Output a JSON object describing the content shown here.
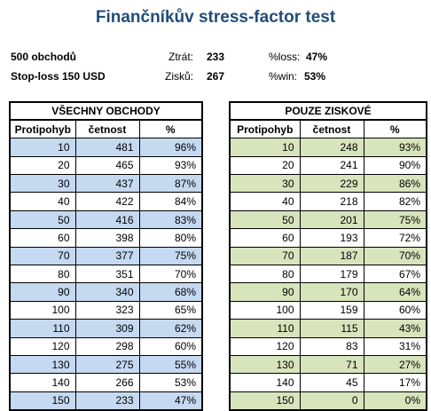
{
  "title": "Finančníkův stress-factor test",
  "info": {
    "trades": "500 obchodů",
    "stoploss": "Stop-loss 150 USD",
    "losses_label": "Ztrát:",
    "losses_value": "233",
    "wins_label": "Zisků:",
    "wins_value": "267",
    "pct_loss_label": "%loss:",
    "pct_loss_value": "47%",
    "pct_win_label": "%win:",
    "pct_win_value": "53%"
  },
  "tables": [
    {
      "caption": "VŠECHNY OBCHODY",
      "headers": [
        "Protipohyb",
        "četnost",
        "%"
      ],
      "rows": [
        [
          "10",
          "481",
          "96%"
        ],
        [
          "20",
          "465",
          "93%"
        ],
        [
          "30",
          "437",
          "87%"
        ],
        [
          "40",
          "422",
          "84%"
        ],
        [
          "50",
          "416",
          "83%"
        ],
        [
          "60",
          "398",
          "80%"
        ],
        [
          "70",
          "377",
          "75%"
        ],
        [
          "80",
          "351",
          "70%"
        ],
        [
          "90",
          "340",
          "68%"
        ],
        [
          "100",
          "323",
          "65%"
        ],
        [
          "110",
          "309",
          "62%"
        ],
        [
          "120",
          "298",
          "60%"
        ],
        [
          "130",
          "275",
          "55%"
        ],
        [
          "140",
          "266",
          "53%"
        ],
        [
          "150",
          "233",
          "47%"
        ]
      ]
    },
    {
      "caption": "POUZE ZISKOVÉ",
      "headers": [
        "Protipohyb",
        "četnost",
        "%"
      ],
      "rows": [
        [
          "10",
          "248",
          "93%"
        ],
        [
          "20",
          "241",
          "90%"
        ],
        [
          "30",
          "229",
          "86%"
        ],
        [
          "40",
          "218",
          "82%"
        ],
        [
          "50",
          "201",
          "75%"
        ],
        [
          "60",
          "193",
          "72%"
        ],
        [
          "70",
          "187",
          "70%"
        ],
        [
          "80",
          "179",
          "67%"
        ],
        [
          "90",
          "170",
          "64%"
        ],
        [
          "100",
          "159",
          "60%"
        ],
        [
          "110",
          "115",
          "43%"
        ],
        [
          "120",
          "83",
          "31%"
        ],
        [
          "130",
          "71",
          "27%"
        ],
        [
          "140",
          "45",
          "17%"
        ],
        [
          "150",
          "0",
          "0%"
        ]
      ]
    }
  ],
  "colors": {
    "title": "#1f4e79",
    "shade_left": "#c5d9f1",
    "shade_right": "#d8e4bc"
  }
}
